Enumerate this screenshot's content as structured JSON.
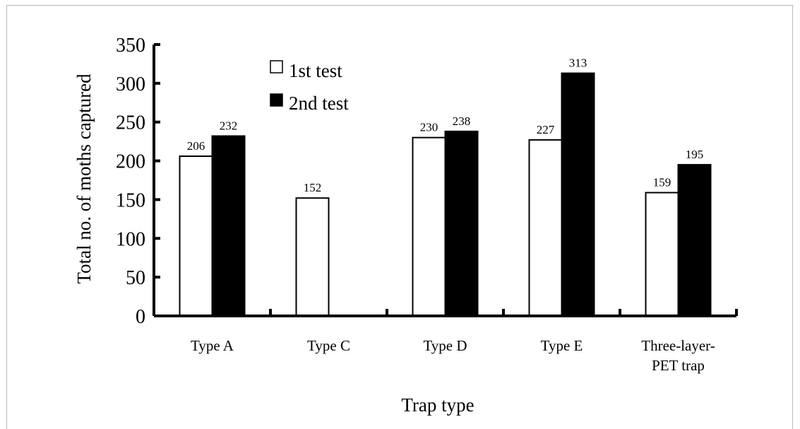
{
  "chart_data": {
    "type": "bar",
    "title": "",
    "xlabel": "Trap type",
    "ylabel": "Total no. of moths captured",
    "ylim": [
      0,
      350
    ],
    "yticks": [
      "0",
      "50",
      "100",
      "150",
      "200",
      "250",
      "300",
      "350"
    ],
    "categories": [
      [
        "Type A"
      ],
      [
        "Type C"
      ],
      [
        "Type D"
      ],
      [
        "Type E"
      ],
      [
        "Three-layer-",
        "PET trap"
      ]
    ],
    "series": [
      {
        "name": "1st test",
        "color": "#ffffff",
        "values": [
          206,
          152,
          230,
          227,
          159
        ],
        "labels": [
          "206",
          "152",
          "230",
          "227",
          "159"
        ]
      },
      {
        "name": "2nd test",
        "color": "#000000",
        "values": [
          232,
          null,
          238,
          313,
          195
        ],
        "labels": [
          "232",
          "",
          "238",
          "313",
          "195"
        ]
      }
    ],
    "legend_position": "top-left",
    "grid": false
  }
}
